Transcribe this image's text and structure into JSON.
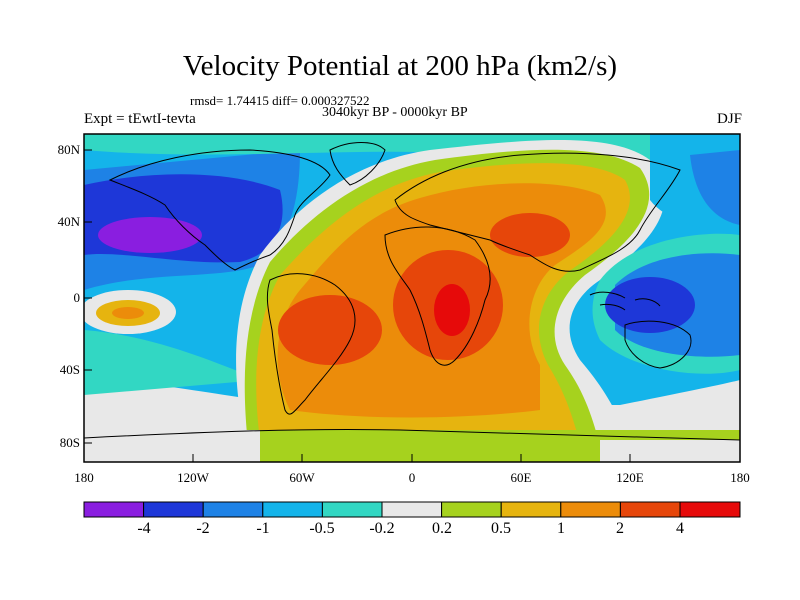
{
  "header": {
    "title": "Velocity Potential at 200 hPa (km2/s)",
    "stats": "rmsd= 1.74415 diff= 0.000327522",
    "experiment": "Expt = tEwtI-tevta",
    "period": "3040kyr BP - 0000kyr BP",
    "season": "DJF"
  },
  "map": {
    "lat_labels": [
      "80N",
      "40N",
      "0",
      "40S",
      "80S"
    ],
    "lon_labels": [
      "180",
      "120W",
      "60W",
      "0",
      "60E",
      "120E",
      "180"
    ]
  },
  "colorbar": {
    "labels": [
      "-4",
      "-2",
      "-1",
      "-0.5",
      "-0.2",
      "0.2",
      "0.5",
      "1",
      "2",
      "4"
    ],
    "colors": [
      "#8a1ee0",
      "#1e37d8",
      "#1e82e6",
      "#14b4ea",
      "#32d7c3",
      "#e8e8e8",
      "#a6d21e",
      "#e6b40f",
      "#ec8c0a",
      "#e6460a",
      "#e60a0a"
    ]
  },
  "colors": {
    "c1": "#8a1ee0",
    "c2": "#1e37d8",
    "c3": "#1e82e6",
    "c4": "#14b4ea",
    "c5": "#32d7c3",
    "c6": "#e8e8e8",
    "c7": "#a6d21e",
    "c8": "#e6b40f",
    "c9": "#ec8c0a",
    "c10": "#e6460a",
    "c11": "#e60a0a"
  }
}
